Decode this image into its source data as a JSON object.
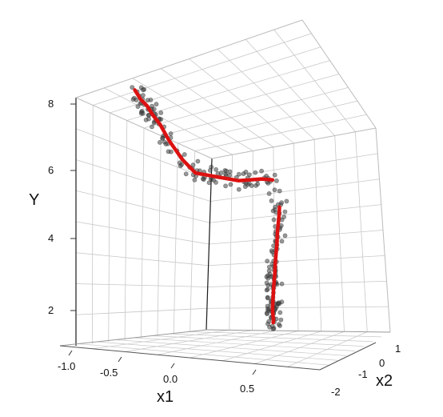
{
  "chart_data": {
    "type": "scatter",
    "subtype": "3d-scatter-with-fitted-curve",
    "axes": {
      "x1": {
        "label": "x1",
        "ticks": [
          "-1.0",
          "-0.5",
          "0.0",
          "0.5"
        ],
        "range": [
          -1.2,
          0.8
        ]
      },
      "x2": {
        "label": "x2",
        "ticks": [
          "-2",
          "-1",
          "0",
          "1"
        ],
        "range": [
          -2.5,
          1.5
        ]
      },
      "y": {
        "label": "Y",
        "ticks": [
          "2",
          "4",
          "6",
          "8"
        ],
        "range": [
          1.0,
          8.5
        ]
      }
    },
    "grid": true,
    "colors": {
      "points": "#444444",
      "fit_line": "#dd1111",
      "grid": "#c8c8c8",
      "box": "#1a1a1a"
    },
    "fitted_curve": [
      {
        "x1": 0.55,
        "x2": -1.35,
        "y": 1.38
      },
      {
        "x1": 0.52,
        "x2": -1.2,
        "y": 1.42
      },
      {
        "x1": 0.48,
        "x2": -1.05,
        "y": 1.5
      },
      {
        "x1": 0.44,
        "x2": -0.9,
        "y": 1.65
      },
      {
        "x1": 0.4,
        "x2": -0.7,
        "y": 1.95
      },
      {
        "x1": 0.36,
        "x2": -0.5,
        "y": 2.2
      },
      {
        "x1": 0.32,
        "x2": -0.3,
        "y": 2.35
      },
      {
        "x1": 0.28,
        "x2": -0.1,
        "y": 2.5
      },
      {
        "x1": 0.24,
        "x2": 0.1,
        "y": 2.8
      },
      {
        "x1": 0.2,
        "x2": 0.35,
        "y": 3.3
      },
      {
        "x1": 0.16,
        "x2": 0.55,
        "y": 3.6
      },
      {
        "x1": 0.13,
        "x2": 0.75,
        "y": 4.0
      },
      {
        "x1": 0.1,
        "x2": 0.9,
        "y": 4.2
      },
      {
        "x1": 0.05,
        "x2": 0.8,
        "y": 5.0
      },
      {
        "x1": 0.0,
        "x2": 0.5,
        "y": 5.1
      },
      {
        "x1": -0.05,
        "x2": 0.2,
        "y": 5.15
      },
      {
        "x1": -0.1,
        "x2": -0.1,
        "y": 5.2
      },
      {
        "x1": -0.18,
        "x2": -0.4,
        "y": 5.35
      },
      {
        "x1": -0.26,
        "x2": -0.7,
        "y": 5.5
      },
      {
        "x1": -0.34,
        "x2": -1.0,
        "y": 5.65
      },
      {
        "x1": -0.42,
        "x2": -1.25,
        "y": 6.1
      },
      {
        "x1": -0.5,
        "x2": -1.5,
        "y": 6.7
      },
      {
        "x1": -0.56,
        "x2": -1.65,
        "y": 7.2
      },
      {
        "x1": -0.6,
        "x2": -1.8,
        "y": 7.5
      },
      {
        "x1": -0.64,
        "x2": -1.9,
        "y": 7.8
      },
      {
        "x1": -0.68,
        "x2": -2.0,
        "y": 8.0
      },
      {
        "x1": -0.72,
        "x2": -2.1,
        "y": 8.3
      }
    ],
    "n_points": 240
  }
}
